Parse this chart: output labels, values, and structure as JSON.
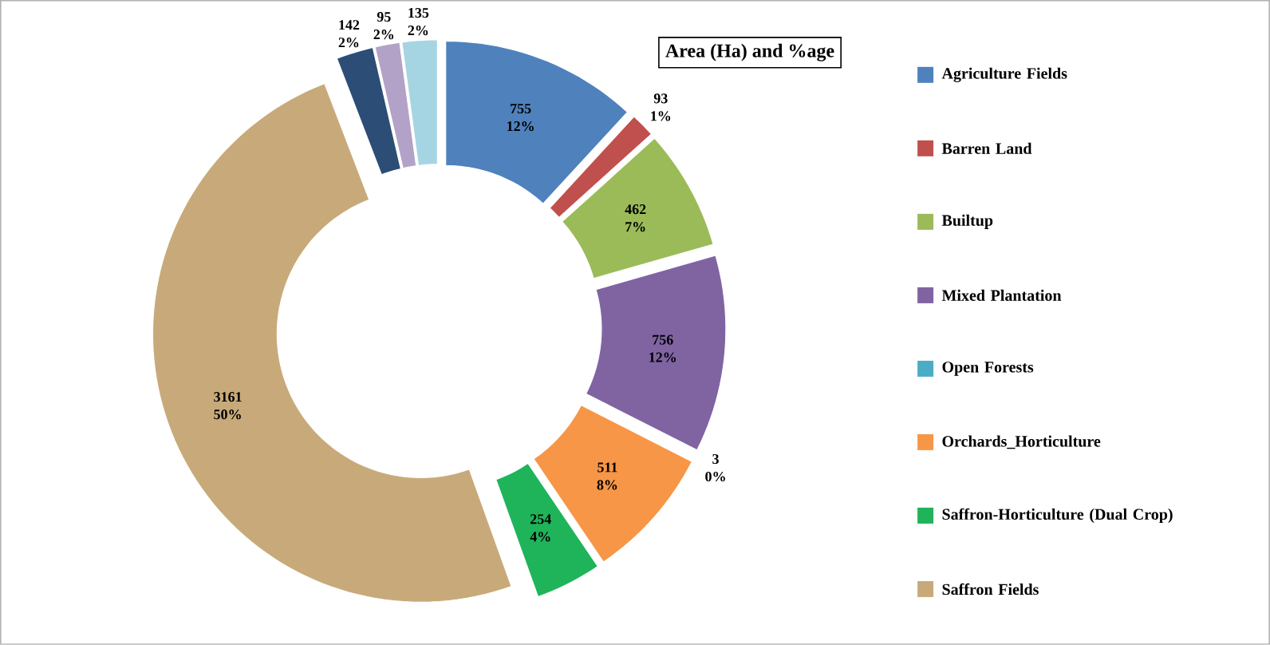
{
  "chart_data": {
    "type": "donut",
    "title": "Area (Ha) and %age",
    "categories": [
      "Agriculture Fields",
      "Barren Land",
      "Builtup",
      "Mixed Plantation",
      "Open Forests",
      "Orchards_Horticulture",
      "Saffron-Horticulture (Dual Crop)",
      "Saffron Fields",
      null,
      null,
      null
    ],
    "values": [
      755,
      93,
      462,
      756,
      3,
      511,
      254,
      3161,
      142,
      95,
      135
    ],
    "colors": [
      "#4f81bd",
      "#c0504d",
      "#9bbb59",
      "#8064a2",
      "#4bacc6",
      "#f79646",
      "#1fb45a",
      "#c8aa7a",
      "#2c4d75",
      "#b3a2c7",
      "#a5d5e2"
    ],
    "value_labels": [
      "755 12%",
      "93 1%",
      "462 7%",
      "756 12%",
      "3 0%",
      "511 8%",
      "254 4%",
      "3161 50%",
      "142 2%",
      "95 2%",
      "135 2%"
    ],
    "legend": "right"
  }
}
